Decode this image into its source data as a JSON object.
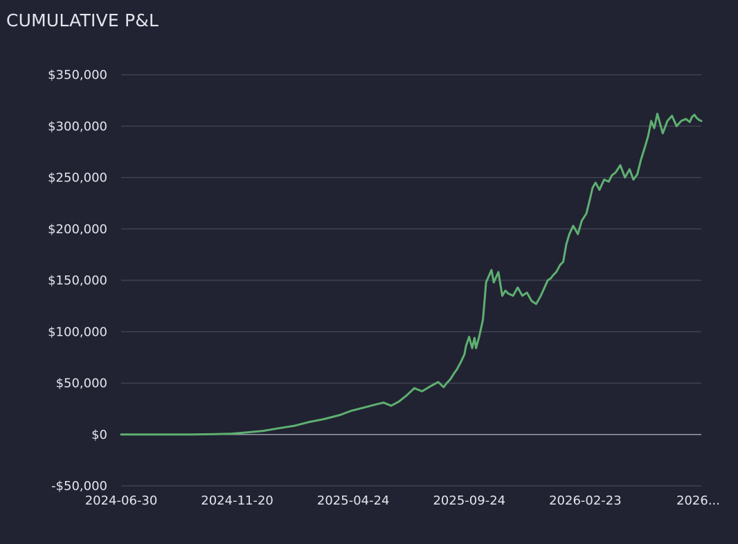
{
  "chart_data": {
    "type": "line",
    "title": "CUMULATIVE P&L",
    "xlabel": "",
    "ylabel": "",
    "x_tick_labels": [
      "2024-06-30",
      "2024-11-20",
      "2025-04-24",
      "2025-09-24",
      "2026-02-23",
      "2026..."
    ],
    "y_tick_labels": [
      "$350,000",
      "$300,000",
      "$250,000",
      "$200,000",
      "$150,000",
      "$100,000",
      "$50,000",
      "$0",
      "-$50,000"
    ],
    "y_ticks": [
      350000,
      300000,
      250000,
      200000,
      150000,
      100000,
      50000,
      0,
      -50000
    ],
    "ylim": [
      -50000,
      350000
    ],
    "xlim": [
      "2024-06-30",
      "2026-07-22"
    ],
    "grid": true,
    "legend": "none",
    "colors": {
      "line": "#5fb071",
      "grid": "#454859",
      "zero_line": "#9a9eac",
      "background": "#212332",
      "text": "#e3e6ee"
    },
    "series": [
      {
        "x": [
          "2024-06-30",
          "2024-07-30",
          "2024-08-31",
          "2024-09-30",
          "2024-10-31",
          "2024-11-20",
          "2024-12-10",
          "2024-12-31",
          "2025-01-20",
          "2025-02-10",
          "2025-02-28",
          "2025-03-20",
          "2025-04-10",
          "2025-04-24",
          "2025-05-10",
          "2025-05-25",
          "2025-06-05",
          "2025-06-15",
          "2025-06-25",
          "2025-07-05",
          "2025-07-15",
          "2025-07-25",
          "2025-08-05",
          "2025-08-15",
          "2025-08-22",
          "2025-08-26",
          "2025-08-31",
          "2025-09-05",
          "2025-09-08",
          "2025-09-13",
          "2025-09-18",
          "2025-09-20",
          "2025-09-24",
          "2025-09-28",
          "2025-10-01",
          "2025-10-03",
          "2025-10-07",
          "2025-10-10",
          "2025-10-12",
          "2025-10-14",
          "2025-10-16",
          "2025-10-19",
          "2025-10-23",
          "2025-10-26",
          "2025-11-01",
          "2025-11-06",
          "2025-11-10",
          "2025-11-14",
          "2025-11-20",
          "2025-11-26",
          "2025-12-02",
          "2025-12-08",
          "2025-12-14",
          "2025-12-20",
          "2025-12-26",
          "2026-01-01",
          "2026-01-04",
          "2026-01-08",
          "2026-01-11",
          "2026-01-15",
          "2026-01-20",
          "2026-01-24",
          "2026-01-28",
          "2026-02-01",
          "2026-02-06",
          "2026-02-12",
          "2026-02-17",
          "2026-02-23",
          "2026-02-28",
          "2026-03-03",
          "2026-03-07",
          "2026-03-12",
          "2026-03-18",
          "2026-03-24",
          "2026-03-28",
          "2026-04-02",
          "2026-04-08",
          "2026-04-14",
          "2026-04-20",
          "2026-04-25",
          "2026-04-30",
          "2026-05-05",
          "2026-05-10",
          "2026-05-14",
          "2026-05-18",
          "2026-05-22",
          "2026-05-26",
          "2026-06-02",
          "2026-06-08",
          "2026-06-14",
          "2026-06-20",
          "2026-06-26",
          "2026-07-02",
          "2026-07-07",
          "2026-07-10",
          "2026-07-13",
          "2026-07-16",
          "2026-07-19",
          "2026-07-22"
        ],
        "y": [
          0,
          0,
          0,
          0,
          300,
          800,
          2000,
          3500,
          6000,
          8500,
          12000,
          15000,
          19000,
          23000,
          26000,
          29000,
          31000,
          28000,
          32000,
          38000,
          45000,
          42000,
          47000,
          51000,
          46000,
          50000,
          54000,
          60000,
          63000,
          70000,
          78000,
          86000,
          95000,
          84000,
          94000,
          84000,
          95000,
          105000,
          112000,
          130000,
          148000,
          153000,
          160000,
          148000,
          158000,
          135000,
          140000,
          137000,
          135000,
          143000,
          135000,
          138000,
          130000,
          127000,
          135000,
          145000,
          150000,
          152000,
          155000,
          158000,
          165000,
          168000,
          185000,
          195000,
          203000,
          195000,
          208000,
          215000,
          230000,
          240000,
          245000,
          238000,
          248000,
          246000,
          252000,
          255000,
          262000,
          250000,
          258000,
          248000,
          253000,
          268000,
          280000,
          290000,
          305000,
          298000,
          312000,
          293000,
          305000,
          310000,
          300000,
          305000,
          307000,
          304000,
          309000,
          311000,
          308000,
          306000,
          305000
        ]
      }
    ]
  }
}
